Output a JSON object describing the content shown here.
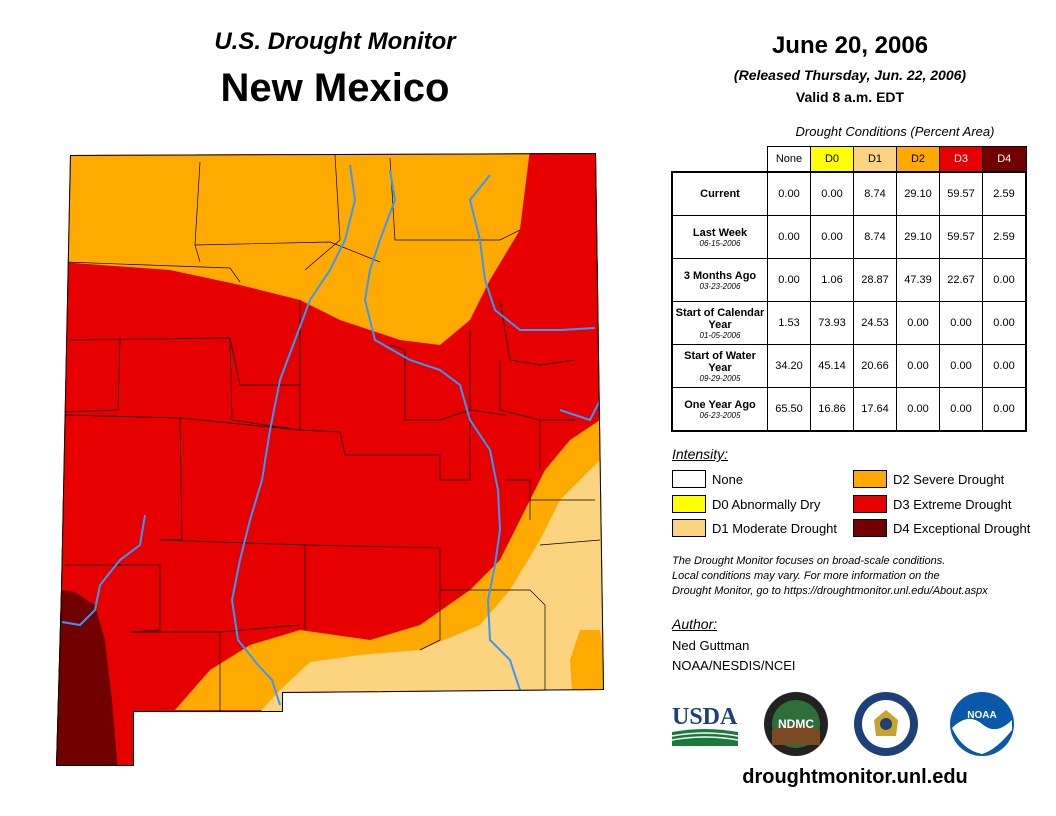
{
  "header": {
    "subtitle": "U.S. Drought Monitor",
    "state": "New Mexico",
    "date": "June 20, 2006",
    "released": "(Released Thursday, Jun. 22, 2006)",
    "valid": "Valid 8 a.m. EDT"
  },
  "table": {
    "caption": "Drought Conditions (Percent Area)",
    "columns": [
      "None",
      "D0",
      "D1",
      "D2",
      "D3",
      "D4"
    ],
    "column_colors": [
      "#ffffff",
      "#ffff00",
      "#fcd37f",
      "#ffaa00",
      "#e60000",
      "#730000"
    ],
    "column_text_colors": [
      "#000000",
      "#000000",
      "#000000",
      "#000000",
      "#ffffff",
      "#ffffff"
    ],
    "rows": [
      {
        "label": "Current",
        "date": "",
        "values": [
          "0.00",
          "0.00",
          "8.74",
          "29.10",
          "59.57",
          "2.59"
        ]
      },
      {
        "label": "Last Week",
        "date": "06-15-2006",
        "values": [
          "0.00",
          "0.00",
          "8.74",
          "29.10",
          "59.57",
          "2.59"
        ]
      },
      {
        "label": "3 Months Ago",
        "date": "03-23-2006",
        "values": [
          "0.00",
          "1.06",
          "28.87",
          "47.39",
          "22.67",
          "0.00"
        ]
      },
      {
        "label": "Start of Calendar Year",
        "date": "01-05-2006",
        "values": [
          "1.53",
          "73.93",
          "24.53",
          "0.00",
          "0.00",
          "0.00"
        ]
      },
      {
        "label": "Start of Water Year",
        "date": "09-29-2005",
        "values": [
          "34.20",
          "45.14",
          "20.66",
          "0.00",
          "0.00",
          "0.00"
        ]
      },
      {
        "label": "One Year Ago",
        "date": "06-23-2005",
        "values": [
          "65.50",
          "16.86",
          "17.64",
          "0.00",
          "0.00",
          "0.00"
        ]
      }
    ]
  },
  "legend": {
    "title": "Intensity:",
    "items": [
      {
        "label": "None",
        "color": "#ffffff"
      },
      {
        "label": "D0 Abnormally Dry",
        "color": "#ffff00"
      },
      {
        "label": "D1 Moderate Drought",
        "color": "#fcd37f"
      },
      {
        "label": "D2 Severe Drought",
        "color": "#ffaa00"
      },
      {
        "label": "D3 Extreme Drought",
        "color": "#e60000"
      },
      {
        "label": "D4 Exceptional Drought",
        "color": "#730000"
      }
    ]
  },
  "note": {
    "line1": "The Drought Monitor focuses on broad-scale conditions.",
    "line2": "Local conditions may vary. For more information on the",
    "line3": "Drought Monitor, go to https://droughtmonitor.unl.edu/About.aspx"
  },
  "author": {
    "title": "Author:",
    "name": "Ned Guttman",
    "org": "NOAA/NESDIS/NCEI"
  },
  "logos": {
    "usda": "USDA",
    "ndmc": "NDMC",
    "noaa": "NOAA"
  },
  "footer": {
    "url": "droughtmonitor.unl.edu"
  }
}
